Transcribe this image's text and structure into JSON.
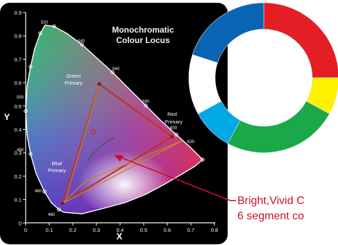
{
  "cie_chart": {
    "x_axis_label": "X",
    "y_axis_label": "Y",
    "x_ticks": [
      "0",
      "0.1",
      "0.2",
      "0.3",
      "0.4",
      "0.5",
      "0.6",
      "0.7",
      "0.8"
    ],
    "y_ticks": [
      "0.9",
      "0.8",
      "0.7",
      "0.6",
      "0.5",
      "0.4",
      "0.3",
      "0.2",
      "0.1",
      "0"
    ],
    "locus_title_line1": "Monochromatic",
    "locus_title_line2": "Colour Locus",
    "wavelengths": [
      "520",
      "540",
      "560",
      "580",
      "600",
      "620",
      "500",
      "490",
      "480",
      "460"
    ],
    "primary_labels": {
      "green_line1": "Green",
      "green_line2": "Primary",
      "red_line1": "Red",
      "red_line2": "Primary",
      "blue_line1": "Blue",
      "blue_line2": "Primary"
    }
  },
  "ring": {
    "segments": [
      {
        "color": "#e31e24",
        "value": 25
      },
      {
        "color": "#fff200",
        "value": 8
      },
      {
        "color": "#1aa84a",
        "value": 25
      },
      {
        "color": "#00a9e6",
        "value": 9
      },
      {
        "color": "#ffffff",
        "value": 13
      },
      {
        "color": "#0a64b4",
        "value": 20
      }
    ]
  },
  "caption": {
    "line1": "Bright,Vivid C",
    "line2": "6 segment co"
  },
  "colors": {
    "chart_bg": "#000000",
    "pointer": "#c8102e",
    "triangle": "#b9342a"
  }
}
